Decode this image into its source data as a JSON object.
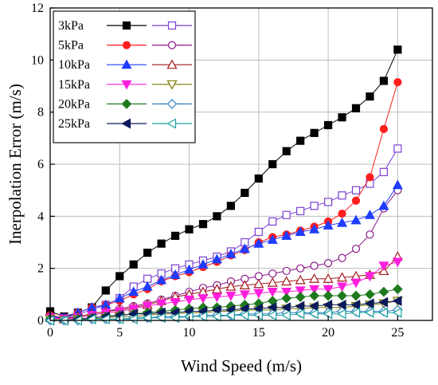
{
  "chart_data": {
    "type": "line",
    "title": "",
    "xlabel": "Wind Speed (m/s)",
    "ylabel": "Inerpolation Error  (m/s)",
    "xlim": [
      0,
      27.5
    ],
    "ylim": [
      0,
      12
    ],
    "xticks": [
      0,
      5,
      10,
      15,
      20,
      25
    ],
    "xtick_labels": [
      "0",
      "5",
      "10",
      "15",
      "20",
      "25"
    ],
    "yticks": [
      0,
      2,
      4,
      6,
      8,
      10,
      12
    ],
    "ytick_labels": [
      "0",
      "2",
      "4",
      "6",
      "8",
      "10",
      "12"
    ],
    "grid": true,
    "legend_position": "top-left",
    "legend_labels": [
      "3kPa",
      "5kPa",
      "10kPa",
      "15kPa",
      "20kPa",
      "25kPa"
    ],
    "x": [
      0,
      1,
      2,
      3,
      4,
      5,
      6,
      7,
      8,
      9,
      10,
      11,
      12,
      13,
      14,
      15,
      16,
      17,
      18,
      19,
      20,
      21,
      22,
      23,
      24,
      25
    ],
    "series": [
      {
        "name": "3kPa",
        "group": "filled",
        "color": "#000000",
        "marker": "square",
        "values": [
          0.35,
          0.15,
          0.3,
          0.5,
          1.15,
          1.7,
          2.15,
          2.6,
          2.95,
          3.25,
          3.5,
          3.7,
          4.0,
          4.4,
          4.9,
          5.45,
          6.0,
          6.5,
          6.9,
          7.2,
          7.5,
          7.8,
          8.15,
          8.6,
          9.2,
          10.4
        ]
      },
      {
        "group": "open",
        "color": "#7b3fd6",
        "marker": "square",
        "values": [
          0.1,
          0.1,
          0.25,
          0.4,
          0.6,
          0.85,
          1.3,
          1.6,
          1.8,
          2.0,
          2.15,
          2.3,
          2.45,
          2.65,
          3.0,
          3.4,
          3.8,
          4.05,
          4.2,
          4.4,
          4.55,
          4.8,
          5.0,
          5.25,
          5.7,
          6.6
        ]
      },
      {
        "name": "5kPa",
        "group": "filled",
        "color": "#ff1e1e",
        "marker": "circle",
        "values": [
          0.2,
          0.1,
          0.3,
          0.5,
          0.6,
          0.75,
          1.0,
          1.2,
          1.5,
          1.7,
          1.85,
          2.05,
          2.25,
          2.5,
          2.7,
          3.0,
          3.2,
          3.3,
          3.45,
          3.6,
          3.8,
          4.1,
          4.6,
          5.5,
          7.35,
          9.15
        ]
      },
      {
        "group": "open",
        "color": "#8b1a8b",
        "marker": "circle",
        "values": [
          0.15,
          0.1,
          0.15,
          0.25,
          0.35,
          0.45,
          0.55,
          0.65,
          0.8,
          0.95,
          1.1,
          1.25,
          1.35,
          1.5,
          1.6,
          1.7,
          1.8,
          1.9,
          2.0,
          2.1,
          2.2,
          2.4,
          2.75,
          3.3,
          4.3,
          5.0
        ]
      },
      {
        "name": "10kPa",
        "group": "filled",
        "color": "#1f3cff",
        "marker": "triangle-up",
        "values": [
          0.15,
          0.1,
          0.3,
          0.5,
          0.6,
          0.85,
          1.1,
          1.3,
          1.55,
          1.75,
          1.95,
          2.15,
          2.35,
          2.55,
          2.75,
          2.95,
          3.1,
          3.25,
          3.4,
          3.5,
          3.65,
          3.75,
          3.85,
          4.05,
          4.4,
          5.2
        ]
      },
      {
        "group": "open",
        "color": "#a31a1a",
        "marker": "triangle-up",
        "values": [
          0.1,
          0.05,
          0.15,
          0.25,
          0.35,
          0.4,
          0.5,
          0.6,
          0.75,
          0.9,
          1.0,
          1.1,
          1.2,
          1.3,
          1.35,
          1.4,
          1.45,
          1.5,
          1.55,
          1.6,
          1.6,
          1.65,
          1.7,
          1.75,
          1.9,
          2.45
        ]
      },
      {
        "name": "15kPa",
        "group": "filled",
        "color": "#ff1edc",
        "marker": "triangle-down",
        "values": [
          0.1,
          0.05,
          0.1,
          0.2,
          0.3,
          0.35,
          0.45,
          0.55,
          0.65,
          0.7,
          0.8,
          0.85,
          0.9,
          0.95,
          1.0,
          1.05,
          1.1,
          1.1,
          1.15,
          1.2,
          1.2,
          1.3,
          1.45,
          1.7,
          2.1,
          2.25
        ]
      },
      {
        "group": "open",
        "color": "#7a7a00",
        "marker": "triangle-down",
        "values": [
          0.05,
          0.0,
          0.05,
          0.05,
          0.1,
          0.15,
          0.15,
          0.2,
          0.25,
          0.25,
          0.3,
          0.3,
          0.35,
          0.35,
          0.4,
          0.4,
          0.4,
          0.45,
          0.45,
          0.5,
          0.5,
          0.5,
          0.55,
          0.6,
          0.65,
          0.75
        ]
      },
      {
        "name": "20kPa",
        "group": "filled",
        "color": "#1f7a1f",
        "marker": "diamond",
        "values": [
          0.05,
          0.0,
          0.05,
          0.1,
          0.15,
          0.2,
          0.25,
          0.3,
          0.35,
          0.4,
          0.45,
          0.5,
          0.5,
          0.55,
          0.6,
          0.65,
          0.75,
          0.85,
          0.9,
          0.95,
          0.95,
          0.95,
          0.95,
          1.0,
          1.1,
          1.2
        ]
      },
      {
        "group": "open",
        "color": "#2f7fc0",
        "marker": "diamond",
        "values": [
          0.0,
          0.0,
          0.0,
          0.05,
          0.05,
          0.05,
          0.1,
          0.1,
          0.15,
          0.15,
          0.15,
          0.2,
          0.2,
          0.2,
          0.25,
          0.25,
          0.25,
          0.3,
          0.3,
          0.3,
          0.3,
          0.35,
          0.35,
          0.35,
          0.35,
          0.4
        ]
      },
      {
        "name": "25kPa",
        "group": "filled",
        "color": "#0a1a5c",
        "marker": "triangle-left",
        "values": [
          0.0,
          0.0,
          0.05,
          0.1,
          0.15,
          0.2,
          0.25,
          0.25,
          0.3,
          0.3,
          0.35,
          0.35,
          0.4,
          0.4,
          0.45,
          0.45,
          0.5,
          0.5,
          0.55,
          0.55,
          0.6,
          0.6,
          0.6,
          0.65,
          0.7,
          0.75
        ]
      },
      {
        "group": "open",
        "color": "#1a9fa0",
        "marker": "triangle-left",
        "values": [
          0.0,
          0.0,
          0.0,
          0.05,
          0.05,
          0.05,
          0.05,
          0.1,
          0.1,
          0.1,
          0.15,
          0.15,
          0.15,
          0.2,
          0.2,
          0.2,
          0.2,
          0.2,
          0.25,
          0.25,
          0.25,
          0.25,
          0.3,
          0.3,
          0.3,
          0.3
        ]
      }
    ]
  }
}
